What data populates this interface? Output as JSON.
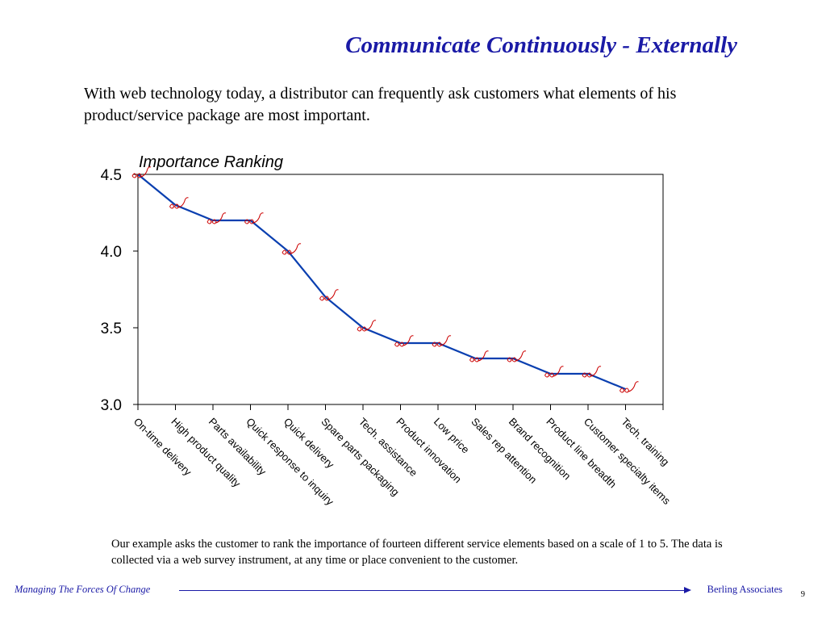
{
  "slide": {
    "title": "Communicate Continuously - Externally",
    "intro": "With web technology today, a distributor can frequently ask customers what elements of his product/service package are most important.",
    "footnote": "Our example asks the customer to rank the importance of fourteen different service elements based on a scale of 1 to 5.  The data is collected via a web survey instrument, at any time or place convenient to the customer."
  },
  "footer": {
    "left": "Managing The Forces Of Change",
    "right": "Berling Associates",
    "page": "9"
  },
  "colors": {
    "title": "#1a1aa6",
    "line": "#0a3fb0",
    "marker": "#cc0000"
  },
  "chart_data": {
    "type": "line",
    "title": "Importance Ranking",
    "xlabel": "",
    "ylabel": "",
    "categories": [
      "On-time delivery",
      "High product quality",
      "Parts availability",
      "Quick response to inquiry",
      "Quick delivery",
      "Spare parts packaging",
      "Tech. assistance",
      "Product innovation",
      "Low price",
      "Sales rep attention",
      "Brand recognition",
      "Product line breadth",
      "Customer specialty items",
      "Tech. training"
    ],
    "values": [
      4.5,
      4.3,
      4.2,
      4.2,
      4.0,
      3.7,
      3.5,
      3.4,
      3.4,
      3.3,
      3.3,
      3.2,
      3.2,
      3.1
    ],
    "ylim": [
      3.0,
      4.5
    ],
    "yticks": [
      "3.0",
      "3.5",
      "4.0",
      "4.5"
    ],
    "grid": false,
    "legend": "none"
  }
}
